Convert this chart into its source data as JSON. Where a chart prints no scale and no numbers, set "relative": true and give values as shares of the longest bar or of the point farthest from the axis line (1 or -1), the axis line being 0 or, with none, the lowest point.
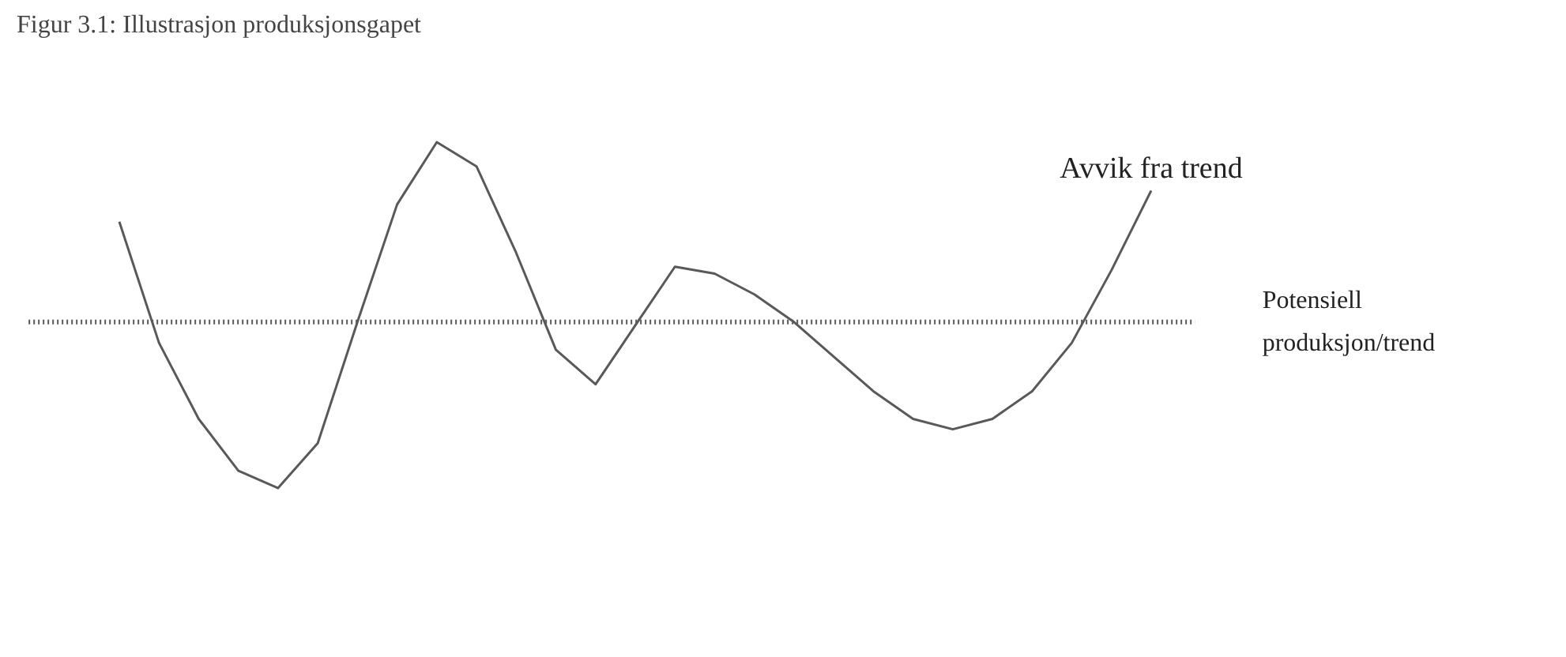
{
  "chart_data": {
    "type": "line",
    "title": "Figur 3.1: Illustrasjon produksjonsgapet",
    "relative": true,
    "categories": [
      null,
      null,
      null,
      null,
      null,
      null,
      null,
      null,
      null,
      null,
      null,
      null,
      null,
      null,
      null,
      null,
      null,
      null,
      null,
      null,
      null,
      null,
      null,
      null,
      null,
      null,
      null
    ],
    "series": [
      {
        "name": "Avvik fra trend",
        "color": "#595959",
        "values": [
          0.77,
          0.42,
          0.2,
          0.05,
          0.0,
          0.13,
          0.48,
          0.82,
          1.0,
          0.93,
          0.68,
          0.4,
          0.3,
          0.47,
          0.64,
          0.62,
          0.56,
          0.48,
          0.38,
          0.28,
          0.2,
          0.17,
          0.2,
          0.28,
          0.42,
          0.63,
          0.86
        ]
      }
    ],
    "ref_lines": [
      {
        "axis": "y",
        "value": 0.48,
        "label": "Potensiell produksjon/trend",
        "line_style": "dotted",
        "color": "#595959"
      }
    ]
  }
}
